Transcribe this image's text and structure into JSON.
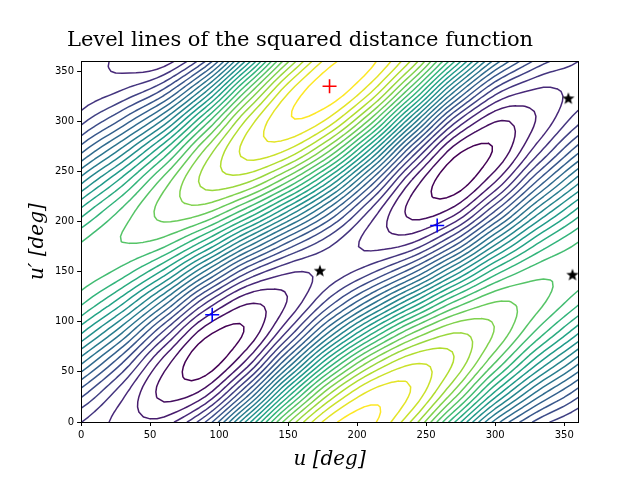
{
  "chart_data": {
    "type": "contour",
    "title": "Level lines of the squared distance function",
    "x_label": "u [deg]",
    "y_label": "u′ [deg]",
    "xlim": [
      0,
      360
    ],
    "ylim": [
      0,
      360
    ],
    "xticks": [
      0,
      50,
      100,
      150,
      200,
      250,
      300,
      350
    ],
    "yticks": [
      0,
      50,
      100,
      150,
      200,
      250,
      300,
      350
    ],
    "grid": false,
    "color": "viridis",
    "x": [
      0,
      30,
      60,
      90,
      120,
      150,
      180,
      210,
      240,
      270,
      300,
      330,
      360
    ],
    "y": [
      0,
      30,
      60,
      90,
      120,
      150,
      180,
      210,
      240,
      270,
      300,
      330,
      360
    ],
    "z": [
      [
        4.02,
        2.99,
        2.83,
        5.49,
        10.95,
        16.64,
        20.17,
        20.68,
        18.07,
        13.14,
        8.2,
        5.29,
        4.02
      ],
      [
        5.94,
        3.54,
        1.52,
        2.08,
        6.3,
        12.27,
        17.26,
        19.89,
        19.68,
        16.66,
        12.2,
        8.46,
        5.94
      ],
      [
        8.74,
        5.58,
        2.19,
        0.55,
        2.69,
        7.69,
        13.0,
        16.94,
        18.86,
        18.23,
        15.31,
        11.78,
        8.74
      ],
      [
        11.68,
        8.58,
        4.64,
        1.33,
        1.08,
        4.13,
        8.53,
        12.61,
        15.84,
        17.43,
        16.7,
        14.36,
        11.68
      ],
      [
        13.97,
        11.73,
        8.24,
        4.19,
        1.9,
        2.55,
        5.07,
        8.08,
        11.4,
        14.48,
        15.99,
        15.51,
        13.97
      ],
      [
        14.99,
        14.17,
        12.01,
        8.38,
        4.92,
        3.35,
        3.52,
        4.57,
        6.75,
        10.16,
        13.39,
        14.93,
        14.99
      ],
      [
        14.47,
        15.26,
        14.94,
        12.77,
        9.36,
        6.33,
        4.3,
        3.0,
        3.14,
        5.64,
        9.57,
        12.77,
        14.47
      ],
      [
        12.55,
        14.7,
        16.25,
        16.18,
        14.01,
        10.7,
        7.21,
        3.8,
        1.53,
        2.13,
        5.57,
        9.59,
        12.55
      ],
      [
        9.75,
        12.66,
        15.59,
        17.71,
        17.62,
        15.28,
        11.47,
        6.74,
        2.35,
        0.56,
        2.46,
        6.27,
        9.75
      ],
      [
        6.81,
        9.66,
        13.13,
        16.93,
        19.23,
        18.84,
        15.94,
        11.07,
        5.37,
        1.35,
        1.07,
        3.69,
        6.81
      ],
      [
        4.52,
        6.51,
        9.53,
        14.07,
        18.41,
        20.42,
        19.41,
        15.6,
        9.81,
        4.3,
        1.78,
        2.54,
        4.52
      ],
      [
        3.5,
        4.08,
        5.76,
        9.88,
        15.39,
        19.62,
        20.96,
        19.11,
        14.46,
        8.62,
        4.38,
        3.12,
        3.5
      ],
      [
        4.02,
        2.99,
        2.83,
        5.49,
        10.95,
        16.64,
        20.17,
        20.68,
        18.07,
        13.14,
        8.2,
        5.29,
        4.02
      ]
    ],
    "levels": [
      1,
      1.75,
      2.5,
      3.25,
      4,
      4.75,
      5.5,
      6.25,
      7,
      7.75,
      8.5,
      9.25,
      10,
      10.75,
      11.5,
      12.25,
      13,
      13.75,
      14.5,
      15.25,
      16,
      16.75,
      17.5,
      18.25,
      19,
      19.75,
      20.5
    ],
    "series": [
      {
        "color": "#ff0000",
        "marker": "cross",
        "x": [
          180
        ],
        "y": [
          335
        ]
      },
      {
        "color": "#0000ff",
        "marker": "cross",
        "x": [
          95,
          258
        ],
        "y": [
          107,
          196
        ]
      },
      {
        "color": "#000000",
        "marker": "star",
        "x": [
          173,
          353,
          356
        ],
        "y": [
          151,
          323,
          147
        ]
      }
    ]
  }
}
